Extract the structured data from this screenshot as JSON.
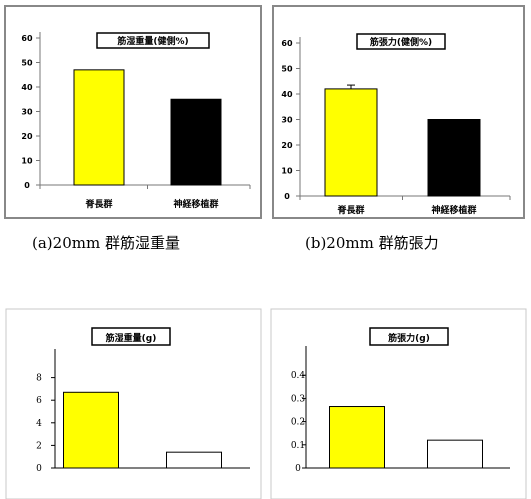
{
  "chart_data": [
    {
      "type": "bar",
      "title": "筋湿重量(健側%)",
      "categories": [
        "脊長群",
        "神経移植群"
      ],
      "values": [
        47,
        35
      ],
      "colors": [
        "#ffff00",
        "#000000"
      ],
      "yticks": [
        "0",
        "10",
        "20",
        "30",
        "40",
        "50",
        "60"
      ],
      "ylim": [
        0,
        60
      ],
      "caption": "(a)20mm 群筋湿重量"
    },
    {
      "type": "bar",
      "title": "筋張力(健側%)",
      "categories": [
        "脊長群",
        "神経移植群"
      ],
      "values": [
        42,
        30
      ],
      "error": [
        1.5,
        null
      ],
      "colors": [
        "#ffff00",
        "#000000"
      ],
      "yticks": [
        "0",
        "10",
        "20",
        "30",
        "40",
        "50",
        "60"
      ],
      "ylim": [
        0,
        60
      ],
      "caption": "(b)20mm 群筋張力"
    },
    {
      "type": "bar",
      "title": "筋湿重量(g)",
      "categories": [
        "",
        ""
      ],
      "values": [
        6.7,
        1.4
      ],
      "colors": [
        "#ffff00",
        "#ffffff"
      ],
      "yticks": [
        "0",
        "2",
        "4",
        "6",
        "8"
      ],
      "ylim": [
        0,
        10
      ]
    },
    {
      "type": "bar",
      "title": "筋張力(g)",
      "categories": [
        "",
        ""
      ],
      "values": [
        0.265,
        0.12
      ],
      "colors": [
        "#ffff00",
        "#ffffff"
      ],
      "yticks": [
        "0",
        "0.1",
        "0.2",
        "0.3",
        "0.4"
      ],
      "ylim": [
        0,
        0.5
      ]
    }
  ]
}
